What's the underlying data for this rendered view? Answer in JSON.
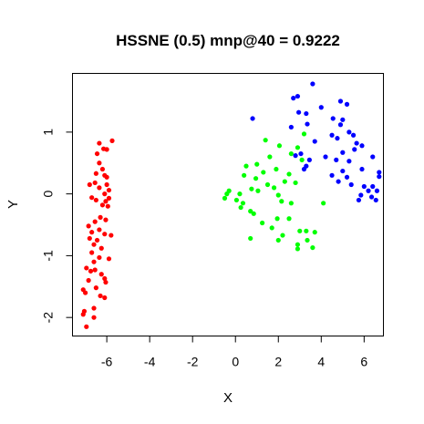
{
  "chart_data": {
    "type": "scatter",
    "title": "HSSNE (0.5) mnp@40 = 0.9222",
    "xlabel": "X",
    "ylabel": "Y",
    "xlim": [
      -7.6,
      6.9
    ],
    "ylim": [
      -2.3,
      1.95
    ],
    "x_ticks": [
      -6,
      -4,
      -2,
      0,
      2,
      4,
      6
    ],
    "y_ticks": [
      -2,
      -1,
      0,
      1
    ],
    "grid": false,
    "legend": "none",
    "series": [
      {
        "color": "#ff0000",
        "points": [
          [
            -6.35,
            0.82
          ],
          [
            -5.75,
            0.86
          ],
          [
            -6.15,
            0.73
          ],
          [
            -6.45,
            0.65
          ],
          [
            -6.0,
            0.72
          ],
          [
            -6.35,
            0.5
          ],
          [
            -6.2,
            0.4
          ],
          [
            -6.5,
            0.33
          ],
          [
            -6.1,
            0.3
          ],
          [
            -6.0,
            0.27
          ],
          [
            -6.8,
            0.15
          ],
          [
            -6.55,
            0.18
          ],
          [
            -6.0,
            0.15
          ],
          [
            -6.35,
            0.1
          ],
          [
            -5.9,
            0.06
          ],
          [
            -6.7,
            -0.06
          ],
          [
            -6.1,
            0.0
          ],
          [
            -5.9,
            -0.07
          ],
          [
            -6.5,
            -0.1
          ],
          [
            -6.05,
            -0.12
          ],
          [
            -6.2,
            -0.18
          ],
          [
            -5.95,
            -0.2
          ],
          [
            -6.3,
            -0.38
          ],
          [
            -6.05,
            -0.42
          ],
          [
            -6.55,
            -0.45
          ],
          [
            -6.85,
            -0.52
          ],
          [
            -6.35,
            -0.58
          ],
          [
            -6.7,
            -0.62
          ],
          [
            -6.1,
            -0.65
          ],
          [
            -5.8,
            -0.67
          ],
          [
            -6.8,
            -0.72
          ],
          [
            -6.45,
            -0.75
          ],
          [
            -6.6,
            -0.82
          ],
          [
            -6.25,
            -0.88
          ],
          [
            -6.7,
            -0.95
          ],
          [
            -6.35,
            -1.03
          ],
          [
            -5.9,
            -1.05
          ],
          [
            -6.6,
            -1.1
          ],
          [
            -6.95,
            -1.2
          ],
          [
            -6.55,
            -1.23
          ],
          [
            -6.75,
            -1.25
          ],
          [
            -6.25,
            -1.3
          ],
          [
            -6.1,
            -1.37
          ],
          [
            -6.85,
            -1.4
          ],
          [
            -6.05,
            -1.43
          ],
          [
            -6.5,
            -1.52
          ],
          [
            -7.1,
            -1.55
          ],
          [
            -7.0,
            -1.6
          ],
          [
            -6.3,
            -1.65
          ],
          [
            -6.1,
            -1.68
          ],
          [
            -6.6,
            -1.85
          ],
          [
            -7.05,
            -1.9
          ],
          [
            -7.1,
            -1.95
          ],
          [
            -6.6,
            -2.0
          ],
          [
            -6.95,
            -2.15
          ]
        ]
      },
      {
        "color": "#00ff00",
        "points": [
          [
            1.4,
            0.87
          ],
          [
            3.2,
            0.97
          ],
          [
            2.05,
            0.78
          ],
          [
            2.9,
            0.75
          ],
          [
            2.6,
            0.65
          ],
          [
            1.6,
            0.6
          ],
          [
            3.1,
            0.55
          ],
          [
            1.0,
            0.48
          ],
          [
            0.5,
            0.45
          ],
          [
            1.9,
            0.4
          ],
          [
            1.3,
            0.35
          ],
          [
            0.4,
            0.3
          ],
          [
            0.95,
            0.25
          ],
          [
            2.5,
            0.32
          ],
          [
            2.3,
            0.2
          ],
          [
            1.5,
            0.15
          ],
          [
            1.8,
            0.1
          ],
          [
            2.8,
            0.18
          ],
          [
            0.75,
            0.08
          ],
          [
            0.2,
            0.0
          ],
          [
            1.05,
            0.05
          ],
          [
            2.0,
            -0.02
          ],
          [
            -0.3,
            0.05
          ],
          [
            -0.4,
            0.0
          ],
          [
            -0.5,
            -0.07
          ],
          [
            0.05,
            -0.1
          ],
          [
            0.35,
            -0.15
          ],
          [
            2.15,
            -0.12
          ],
          [
            2.6,
            -0.15
          ],
          [
            4.1,
            -0.15
          ],
          [
            0.25,
            -0.22
          ],
          [
            0.7,
            -0.28
          ],
          [
            0.85,
            -0.32
          ],
          [
            1.25,
            -0.47
          ],
          [
            1.95,
            -0.4
          ],
          [
            2.5,
            -0.4
          ],
          [
            1.7,
            -0.55
          ],
          [
            3.0,
            -0.6
          ],
          [
            3.3,
            -0.6
          ],
          [
            3.7,
            -0.62
          ],
          [
            2.2,
            -0.67
          ],
          [
            0.7,
            -0.72
          ],
          [
            2.0,
            -0.75
          ],
          [
            3.35,
            -0.75
          ],
          [
            2.9,
            -0.82
          ],
          [
            3.6,
            -0.87
          ],
          [
            2.9,
            -0.89
          ]
        ]
      },
      {
        "color": "#0000ff",
        "points": [
          [
            3.6,
            1.78
          ],
          [
            2.9,
            1.58
          ],
          [
            2.7,
            1.55
          ],
          [
            4.9,
            1.5
          ],
          [
            5.2,
            1.45
          ],
          [
            4.0,
            1.4
          ],
          [
            2.95,
            1.32
          ],
          [
            3.3,
            1.3
          ],
          [
            0.8,
            1.22
          ],
          [
            4.55,
            1.22
          ],
          [
            5.0,
            1.2
          ],
          [
            3.35,
            1.13
          ],
          [
            4.9,
            1.12
          ],
          [
            2.6,
            1.08
          ],
          [
            5.3,
            1.0
          ],
          [
            4.5,
            0.95
          ],
          [
            5.5,
            0.95
          ],
          [
            4.75,
            0.9
          ],
          [
            3.7,
            0.85
          ],
          [
            5.65,
            0.82
          ],
          [
            5.9,
            0.78
          ],
          [
            5.55,
            0.72
          ],
          [
            5.0,
            0.67
          ],
          [
            3.05,
            0.65
          ],
          [
            2.8,
            0.62
          ],
          [
            4.2,
            0.6
          ],
          [
            6.4,
            0.6
          ],
          [
            3.45,
            0.55
          ],
          [
            4.7,
            0.55
          ],
          [
            5.3,
            0.53
          ],
          [
            3.3,
            0.45
          ],
          [
            3.2,
            0.4
          ],
          [
            5.0,
            0.37
          ],
          [
            5.9,
            0.4
          ],
          [
            6.7,
            0.35
          ],
          [
            4.5,
            0.3
          ],
          [
            5.2,
            0.27
          ],
          [
            6.7,
            0.28
          ],
          [
            4.8,
            0.2
          ],
          [
            5.4,
            0.15
          ],
          [
            6.0,
            0.12
          ],
          [
            6.4,
            0.12
          ],
          [
            6.2,
            0.05
          ],
          [
            6.6,
            0.05
          ],
          [
            5.85,
            -0.02
          ],
          [
            6.35,
            -0.05
          ],
          [
            5.75,
            -0.1
          ],
          [
            6.55,
            -0.1
          ]
        ]
      }
    ]
  }
}
